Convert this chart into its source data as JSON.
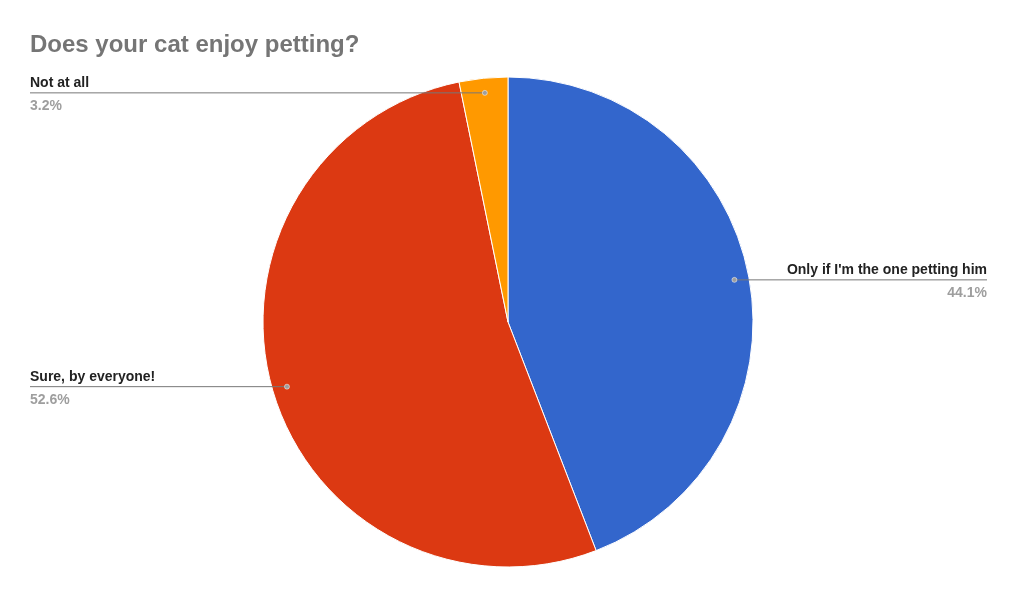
{
  "chart_data": {
    "type": "pie",
    "title": "Does your cat enjoy petting?",
    "categories": [
      "Only if I'm the one petting him",
      "Sure, by everyone!",
      "Not at all"
    ],
    "values": [
      44.1,
      52.6,
      3.2
    ],
    "colors": [
      "#3366cc",
      "#dc3912",
      "#ff9900"
    ],
    "value_labels": [
      "44.1%",
      "52.6%",
      "3.2%"
    ]
  }
}
